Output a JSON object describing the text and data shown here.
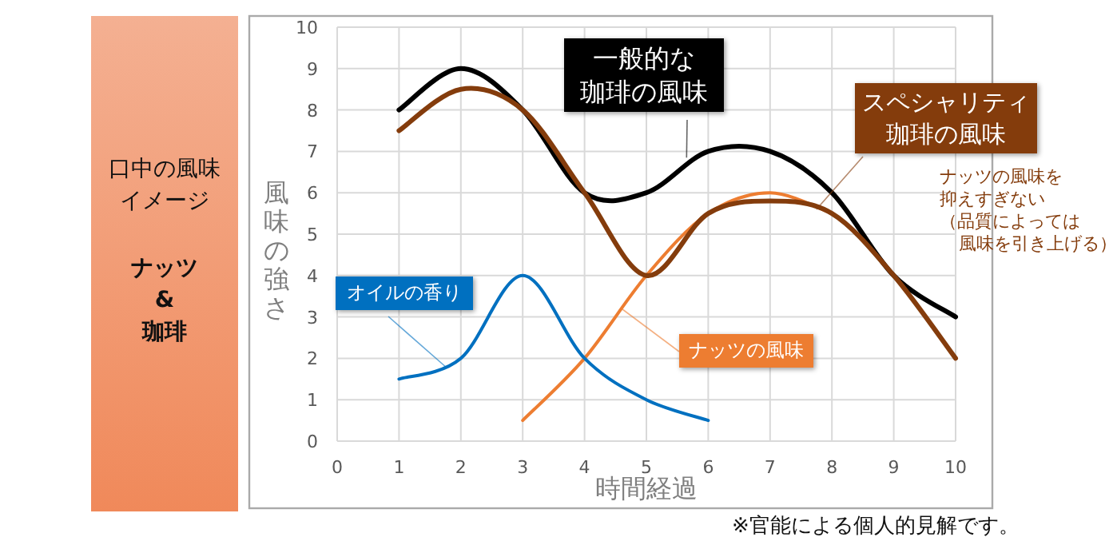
{
  "chart_data": {
    "type": "line",
    "title": "口中の風味イメージ",
    "subtitle": "ナッツ\n&\n珈琲",
    "xlabel": "時間経過",
    "ylabel": "風味の強さ",
    "xlim": [
      0,
      10
    ],
    "ylim": [
      0,
      10
    ],
    "xticks": [
      0,
      1,
      2,
      3,
      4,
      5,
      6,
      7,
      8,
      9,
      10
    ],
    "yticks": [
      0,
      1,
      2,
      3,
      4,
      5,
      6,
      7,
      8,
      9,
      10
    ],
    "grid": true,
    "line_style": "solid",
    "series": [
      {
        "name": "一般的な珈琲の風味",
        "color": "#000000",
        "x": [
          1,
          2,
          3,
          4,
          5,
          6,
          7,
          8,
          9,
          10
        ],
        "values": [
          8,
          9,
          8,
          6,
          6,
          7,
          7,
          6,
          4,
          3
        ]
      },
      {
        "name": "スペシャリティ珈琲の風味",
        "color": "#843c0c",
        "x": [
          1,
          2,
          3,
          4,
          5,
          6,
          7,
          8,
          9,
          10
        ],
        "values": [
          7.5,
          8.5,
          8,
          6,
          4,
          5.5,
          5.8,
          5.5,
          4,
          2
        ]
      },
      {
        "name": "オイルの香り",
        "color": "#0070c0",
        "x": [
          1,
          2,
          3,
          4,
          5,
          6
        ],
        "values": [
          1.5,
          2,
          4,
          2,
          1,
          0.5
        ]
      },
      {
        "name": "ナッツの風味",
        "color": "#ed7d31",
        "x": [
          3,
          4,
          5,
          6,
          7,
          8
        ],
        "values": [
          0.5,
          2,
          4,
          5.5,
          6,
          5.5
        ]
      }
    ],
    "annotations": [
      "ナッツの風味を抑えすぎない（品質によっては風味を引き上げる）",
      "※官能による個人的見解です。"
    ]
  }
}
